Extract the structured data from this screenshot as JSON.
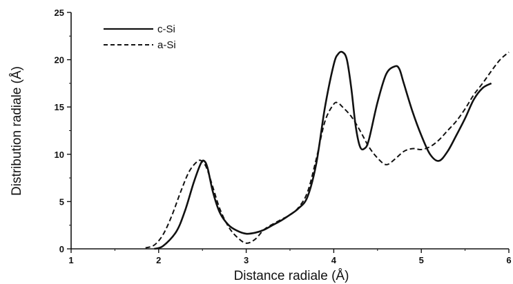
{
  "chart_data": {
    "type": "line",
    "xlabel": "Distance radiale (Å)",
    "ylabel": "Distribution radiale (Å)",
    "xlim": [
      1,
      6
    ],
    "ylim": [
      0,
      25
    ],
    "x_ticks": [
      "1",
      "2",
      "3",
      "4",
      "5",
      "6"
    ],
    "y_ticks": [
      "0",
      "5",
      "10",
      "15",
      "20",
      "25"
    ],
    "grid": false,
    "legend_position": "top-left",
    "series": [
      {
        "name": "c-Si",
        "style": "solid",
        "color": "#111111",
        "x": [
          1.95,
          2.05,
          2.2,
          2.3,
          2.4,
          2.48,
          2.52,
          2.56,
          2.62,
          2.7,
          2.8,
          2.9,
          3.0,
          3.1,
          3.2,
          3.3,
          3.4,
          3.5,
          3.6,
          3.7,
          3.8,
          3.9,
          4.0,
          4.05,
          4.1,
          4.15,
          4.2,
          4.25,
          4.3,
          4.35,
          4.4,
          4.5,
          4.6,
          4.7,
          4.75,
          4.8,
          4.9,
          5.0,
          5.1,
          5.2,
          5.3,
          5.4,
          5.5,
          5.6,
          5.7,
          5.8
        ],
        "y": [
          0.0,
          0.3,
          1.8,
          4.0,
          7.0,
          9.0,
          9.3,
          8.5,
          6.0,
          3.8,
          2.5,
          1.9,
          1.6,
          1.7,
          2.0,
          2.5,
          3.0,
          3.6,
          4.3,
          5.5,
          9.0,
          15.0,
          19.5,
          20.6,
          20.8,
          20.0,
          17.0,
          13.0,
          10.8,
          10.6,
          11.5,
          15.5,
          18.5,
          19.3,
          19.0,
          17.5,
          14.5,
          12.0,
          10.0,
          9.3,
          10.3,
          12.0,
          13.8,
          15.8,
          17.0,
          17.5
        ]
      },
      {
        "name": "a-Si",
        "style": "dashed",
        "color": "#111111",
        "x": [
          1.85,
          1.95,
          2.05,
          2.15,
          2.25,
          2.35,
          2.45,
          2.5,
          2.55,
          2.62,
          2.7,
          2.8,
          2.9,
          3.0,
          3.1,
          3.2,
          3.3,
          3.4,
          3.5,
          3.6,
          3.7,
          3.8,
          3.9,
          4.0,
          4.05,
          4.1,
          4.2,
          4.3,
          4.4,
          4.5,
          4.6,
          4.7,
          4.8,
          4.9,
          5.0,
          5.1,
          5.2,
          5.3,
          5.4,
          5.5,
          5.6,
          5.7,
          5.8,
          5.9,
          6.0
        ],
        "y": [
          0.1,
          0.4,
          1.5,
          3.5,
          6.0,
          8.2,
          9.3,
          9.2,
          8.5,
          6.5,
          4.2,
          2.3,
          1.2,
          0.6,
          1.0,
          2.0,
          2.6,
          3.1,
          3.6,
          4.4,
          6.0,
          9.5,
          13.5,
          15.3,
          15.4,
          15.0,
          14.0,
          12.5,
          10.8,
          9.6,
          8.9,
          9.5,
          10.3,
          10.6,
          10.5,
          10.8,
          11.5,
          12.5,
          13.5,
          14.8,
          16.3,
          17.5,
          18.8,
          20.0,
          20.8
        ]
      }
    ]
  }
}
